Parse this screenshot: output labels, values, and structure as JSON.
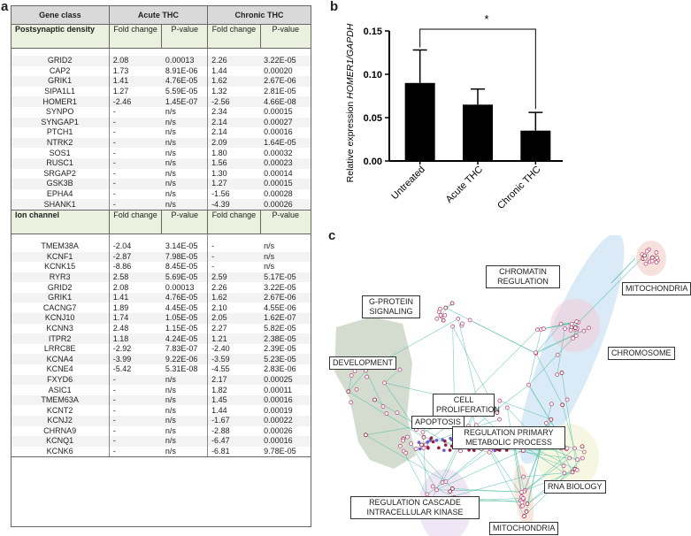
{
  "panel_labels": {
    "a": "a",
    "b": "b",
    "c": "c"
  },
  "table": {
    "header": {
      "col1": "Gene class",
      "col2": "Acute THC",
      "col3": "Chronic THC"
    },
    "sections": [
      {
        "name": "Postsynaptic density",
        "sub": {
          "fc": "Fold change",
          "p": "P-value"
        },
        "rows": [
          [
            "GRID2",
            "2.08",
            "0.00013",
            "2.26",
            "3.22E-05"
          ],
          [
            "CAP2",
            "1.73",
            "8.91E-06",
            "1.44",
            "0.00020"
          ],
          [
            "GRIK1",
            "1.41",
            "4.76E-05",
            "1.62",
            "2.67E-06"
          ],
          [
            "SIPA1L1",
            "1.27",
            "5.59E-05",
            "1.32",
            "2.81E-05"
          ],
          [
            "HOMER1",
            "-2.46",
            "1.45E-07",
            "-2.56",
            "4.66E-08"
          ],
          [
            "SYNPO",
            "-",
            "n/s",
            "2.34",
            "0.00015"
          ],
          [
            "SYNGAP1",
            "-",
            "n/s",
            "2.14",
            "0.00027"
          ],
          [
            "PTCH1",
            "-",
            "n/s",
            "2.14",
            "0.00016"
          ],
          [
            "NTRK2",
            "-",
            "n/s",
            "2.09",
            "1.64E-05"
          ],
          [
            "SOS1",
            "-",
            "n/s",
            "1.80",
            "0.00032"
          ],
          [
            "RUSC1",
            "-",
            "n/s",
            "1.56",
            "0.00023"
          ],
          [
            "SRGAP2",
            "-",
            "n/s",
            "1.30",
            "0.00014"
          ],
          [
            "GSK3B",
            "-",
            "n/s",
            "1.27",
            "0.00015"
          ],
          [
            "EPHA4",
            "-",
            "n/s",
            "-1.56",
            "0.00028"
          ],
          [
            "SHANK1",
            "-",
            "n/s",
            "-4.39",
            "0.00026"
          ]
        ]
      },
      {
        "name": "Ion channel",
        "sub": {
          "fc": "Fold change",
          "p": "P-value"
        },
        "rows": [
          [
            "TMEM38A",
            "-2.04",
            "3.14E-05",
            "-",
            "n/s"
          ],
          [
            "KCNF1",
            "-2.87",
            "7.98E-05",
            "-",
            "n/s"
          ],
          [
            "KCNK15",
            "-8.86",
            "8.45E-05",
            "-",
            "n/s"
          ],
          [
            "RYR3",
            "2.58",
            "5.69E-05",
            "2.59",
            "5.17E-05"
          ],
          [
            "GRID2",
            "2.08",
            "0.00013",
            "2.26",
            "3.22E-05"
          ],
          [
            "GRIK1",
            "1.41",
            "4.76E-05",
            "1.62",
            "2.67E-06"
          ],
          [
            "CACNG7",
            "1.89",
            "4.45E-05",
            "2.10",
            "4.55E-06"
          ],
          [
            "KCNJ10",
            "1.74",
            "1.05E-05",
            "2.05",
            "1.62E-07"
          ],
          [
            "KCNN3",
            "2.48",
            "1.15E-05",
            "2.27",
            "5.82E-05"
          ],
          [
            "ITPR2",
            "1.18",
            "4.24E-05",
            "1.21",
            "2.38E-05"
          ],
          [
            "LRRC8E",
            "-2.92",
            "7.83E-07",
            "-2.40",
            "2.39E-05"
          ],
          [
            "KCNA4",
            "-3.99",
            "9.22E-06",
            "-3.59",
            "5.23E-05"
          ],
          [
            "KCNE4",
            "-5.42",
            "5.31E-08",
            "-4.55",
            "2.83E-06"
          ],
          [
            "FXYD6",
            "-",
            "n/s",
            "2.17",
            "0.00025"
          ],
          [
            "ASIC1",
            "-",
            "n/s",
            "1.82",
            "0.00011"
          ],
          [
            "TMEM63A",
            "-",
            "n/s",
            "1.45",
            "0.00016"
          ],
          [
            "KCNT2",
            "-",
            "n/s",
            "1.44",
            "0.00019"
          ],
          [
            "KCNJ2",
            "-",
            "n/s",
            "-1.67",
            "0.00022"
          ],
          [
            "CHRNA9",
            "-",
            "n/s",
            "-2.88",
            "0.00026"
          ],
          [
            "KCNQ1",
            "-",
            "n/s",
            "-6.47",
            "0.00016"
          ],
          [
            "KCNK6",
            "-",
            "n/s",
            "-6.81",
            "9.78E-05"
          ]
        ]
      }
    ]
  },
  "chart_data": {
    "type": "bar",
    "categories": [
      "Untreated",
      "Acute THC",
      "Chronic THC"
    ],
    "values": [
      0.09,
      0.065,
      0.035
    ],
    "errors": [
      0.038,
      0.018,
      0.021
    ],
    "ylabel_prefix": "Relative expression ",
    "ylabel_italic": "HOMER1/GAPDH",
    "yticks": [
      "0.00",
      "0.05",
      "0.10",
      "0.15"
    ],
    "ylim": [
      0,
      0.15
    ],
    "significance": {
      "from": "Untreated",
      "to": "Chronic THC",
      "label": "*"
    },
    "bar_color": "#000000"
  },
  "network": {
    "labels": [
      "CHROMATIN REGULATION",
      "MITOCHONDRIA",
      "G-PROTEIN SIGNALING",
      "CHROMOSOME",
      "DEVELOPMENT",
      "CELL PROLIFERATION",
      "APOPTOSIS",
      "REGULATION PRIMARY METABOLIC PROCESS",
      "RNA BIOLOGY",
      "REGULATION CASCADE INTRACELLULAR KINASE",
      "MITOCHONDRIA"
    ],
    "colors": {
      "edge": "#3fb99a",
      "node": "#c24a7a",
      "node_dark": "#9a1a3a",
      "hub": "#6a5acd"
    }
  }
}
